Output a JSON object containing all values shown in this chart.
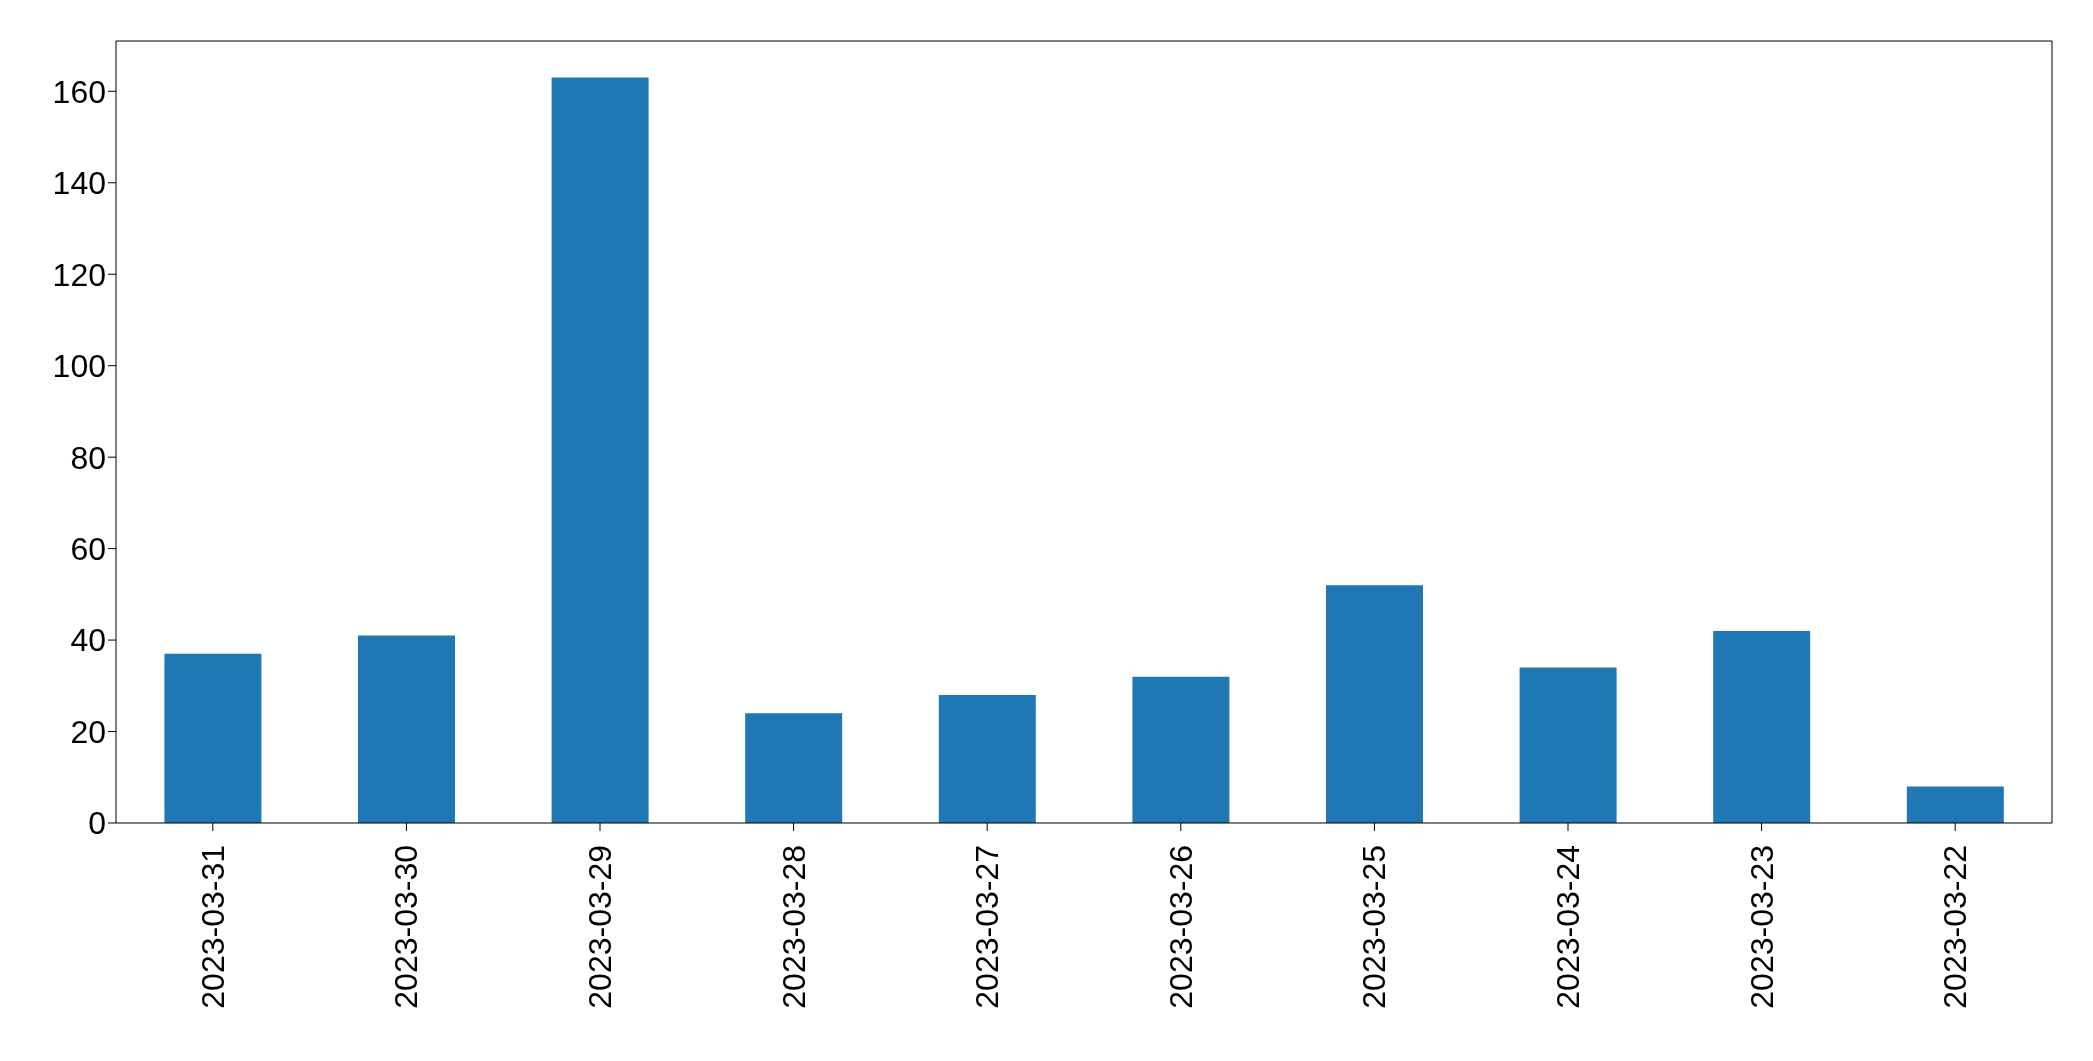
{
  "chart_data": {
    "type": "bar",
    "categories": [
      "2023-03-31",
      "2023-03-30",
      "2023-03-29",
      "2023-03-28",
      "2023-03-27",
      "2023-03-26",
      "2023-03-25",
      "2023-03-24",
      "2023-03-23",
      "2023-03-22"
    ],
    "values": [
      37,
      41,
      163,
      24,
      28,
      32,
      52,
      34,
      42,
      8
    ],
    "color": "#1f77b4",
    "ylim": [
      0,
      171
    ],
    "yticks": [
      0,
      20,
      40,
      60,
      80,
      100,
      120,
      140,
      160
    ],
    "grid": false,
    "legend": false
  }
}
